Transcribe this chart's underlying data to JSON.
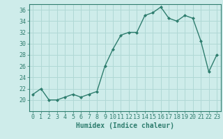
{
  "x": [
    0,
    1,
    2,
    3,
    4,
    5,
    6,
    7,
    8,
    9,
    10,
    11,
    12,
    13,
    14,
    15,
    16,
    17,
    18,
    19,
    20,
    21,
    22,
    23
  ],
  "y": [
    21,
    22,
    20,
    20,
    20.5,
    21,
    20.5,
    21,
    21.5,
    26,
    29,
    31.5,
    32,
    32,
    35,
    35.5,
    36.5,
    34.5,
    34,
    35,
    34.5,
    30.5,
    25,
    28
  ],
  "xlabel": "Humidex (Indice chaleur)",
  "ylim": [
    18,
    37
  ],
  "xlim": [
    -0.5,
    23.5
  ],
  "yticks": [
    20,
    22,
    24,
    26,
    28,
    30,
    32,
    34,
    36
  ],
  "xticks": [
    0,
    1,
    2,
    3,
    4,
    5,
    6,
    7,
    8,
    9,
    10,
    11,
    12,
    13,
    14,
    15,
    16,
    17,
    18,
    19,
    20,
    21,
    22,
    23
  ],
  "line_color": "#2e7d6e",
  "marker": "D",
  "marker_size": 2,
  "bg_color": "#ceecea",
  "grid_color": "#b0d8d5",
  "xlabel_fontsize": 7,
  "tick_fontsize": 6,
  "line_width": 1.0
}
